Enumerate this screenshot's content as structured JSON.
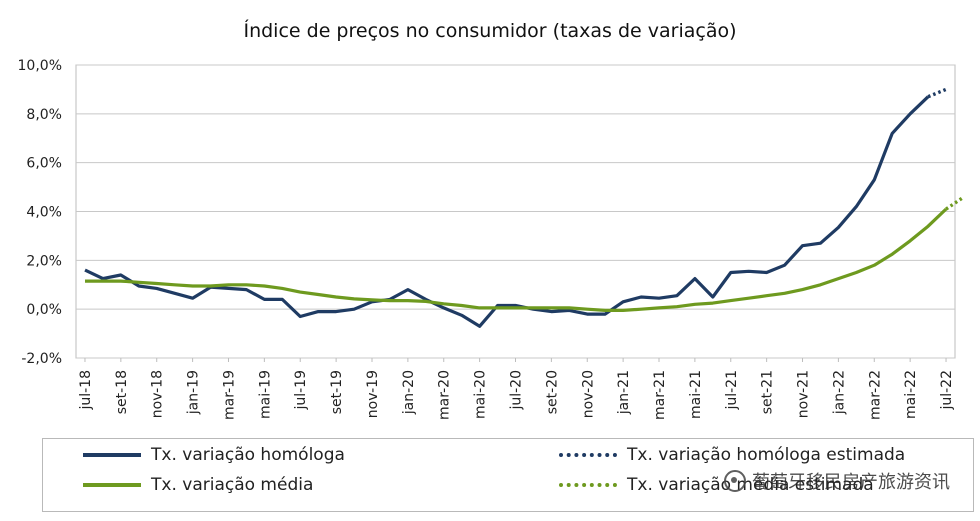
{
  "chart_data": {
    "type": "line",
    "title": "Índice de preços no consumidor  (taxas  de variação)",
    "xlabel": "",
    "ylabel": "",
    "ylim": [
      -2,
      10
    ],
    "y_ticks": [
      -2,
      0,
      2,
      4,
      6,
      8,
      10
    ],
    "y_tick_labels": [
      "-2,0%",
      "0,0%",
      "2,0%",
      "4,0%",
      "6,0%",
      "8,0%",
      "10,0%"
    ],
    "grid": true,
    "x_tick_labels": [
      "jul-18",
      "set-18",
      "nov-18",
      "jan-19",
      "mar-19",
      "mai-19",
      "jul-19",
      "set-19",
      "nov-19",
      "jan-20",
      "mar-20",
      "mai-20",
      "jul-20",
      "set-20",
      "nov-20",
      "jan-21",
      "mar-21",
      "mai-21",
      "jul-21",
      "set-21",
      "nov-21",
      "jan-22",
      "mar-22",
      "mai-22",
      "jul-22"
    ],
    "months_count": 49,
    "series": [
      {
        "name": "Tx. variação homóloga",
        "color": "#1f3b63",
        "style": "solid",
        "start_index": 0,
        "values": [
          1.6,
          1.25,
          1.4,
          0.95,
          0.85,
          0.65,
          0.45,
          0.9,
          0.85,
          0.8,
          0.4,
          0.4,
          -0.3,
          -0.1,
          -0.1,
          0.0,
          0.3,
          0.4,
          0.8,
          0.4,
          0.05,
          -0.25,
          -0.7,
          0.15,
          0.15,
          0.0,
          -0.1,
          -0.05,
          -0.2,
          -0.2,
          0.3,
          0.5,
          0.45,
          0.55,
          1.25,
          0.5,
          1.5,
          1.55,
          1.5,
          1.8,
          2.6,
          2.7,
          3.35,
          4.2,
          5.3,
          7.2,
          8.0,
          8.7
        ]
      },
      {
        "name": "Tx. variação homóloga estimada",
        "color": "#1f3b63",
        "style": "dotted",
        "start_index": 47,
        "values": [
          8.7,
          9.0
        ]
      },
      {
        "name": "Tx. variação média",
        "color": "#6e9a1f",
        "style": "solid",
        "start_index": 0,
        "values": [
          1.15,
          1.15,
          1.15,
          1.1,
          1.05,
          1.0,
          0.95,
          0.95,
          1.0,
          1.0,
          0.95,
          0.85,
          0.7,
          0.6,
          0.5,
          0.42,
          0.38,
          0.35,
          0.35,
          0.32,
          0.22,
          0.15,
          0.05,
          0.05,
          0.05,
          0.05,
          0.05,
          0.05,
          0.0,
          -0.05,
          -0.05,
          0.0,
          0.05,
          0.1,
          0.2,
          0.25,
          0.35,
          0.45,
          0.55,
          0.65,
          0.8,
          1.0,
          1.25,
          1.5,
          1.8,
          2.25,
          2.8,
          3.4,
          4.1
        ]
      },
      {
        "name": "Tx. variação média estimada",
        "color": "#6e9a1f",
        "style": "dotted",
        "start_index": 48,
        "values": [
          4.1,
          4.6
        ]
      }
    ]
  },
  "legend": {
    "items": [
      {
        "label": "Tx. variação homóloga"
      },
      {
        "label": "Tx. variação homóloga estimada"
      },
      {
        "label": "Tx. variação média"
      },
      {
        "label": "Tx. variação média estimada"
      }
    ]
  },
  "watermark": {
    "text": "葡萄牙移民房产旅游资讯"
  }
}
